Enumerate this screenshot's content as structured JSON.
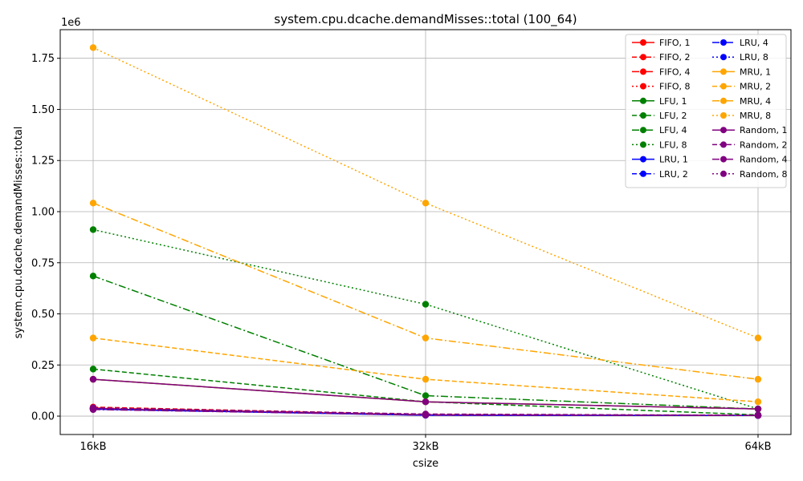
{
  "chart_data": {
    "type": "line",
    "title": "system.cpu.dcache.demandMisses::total (100_64)",
    "xlabel": "csize",
    "ylabel": "system.cpu.dcache.demandMisses::total",
    "y_offset_text": "1e6",
    "categories": [
      "16kB",
      "32kB",
      "64kB"
    ],
    "y_ticks": [
      "0.00",
      "0.25",
      "0.50",
      "0.75",
      "1.00",
      "1.25",
      "1.50",
      "1.75"
    ],
    "y_tick_values": [
      0,
      0.25,
      0.5,
      0.75,
      1.0,
      1.25,
      1.5,
      1.75
    ],
    "ylim": [
      -0.09,
      1.89
    ],
    "grid": true,
    "legend_position": "top-right",
    "series": [
      {
        "name": "FIFO, 1",
        "color": "#ff0000",
        "dash": "solid",
        "values": [
          0.036,
          0.006,
          0.003
        ]
      },
      {
        "name": "FIFO, 2",
        "color": "#ff0000",
        "dash": "dashed",
        "values": [
          0.044,
          0.008,
          0.003
        ]
      },
      {
        "name": "FIFO, 4",
        "color": "#ff0000",
        "dash": "dashdot",
        "values": [
          0.04,
          0.007,
          0.003
        ]
      },
      {
        "name": "FIFO, 8",
        "color": "#ff0000",
        "dash": "dotted",
        "values": [
          0.038,
          0.007,
          0.003
        ]
      },
      {
        "name": "LFU, 1",
        "color": "#008000",
        "dash": "solid",
        "values": [
          0.18,
          0.07,
          0.035
        ]
      },
      {
        "name": "LFU, 2",
        "color": "#008000",
        "dash": "dashed",
        "values": [
          0.23,
          0.07,
          0.006
        ]
      },
      {
        "name": "LFU, 4",
        "color": "#008000",
        "dash": "dashdot",
        "values": [
          0.685,
          0.1,
          0.035
        ]
      },
      {
        "name": "LFU, 8",
        "color": "#008000",
        "dash": "dotted",
        "values": [
          0.912,
          0.547,
          0.035
        ]
      },
      {
        "name": "LRU, 1",
        "color": "#0000ff",
        "dash": "solid",
        "values": [
          0.034,
          0.004,
          0.003
        ]
      },
      {
        "name": "LRU, 2",
        "color": "#0000ff",
        "dash": "dashed",
        "values": [
          0.04,
          0.007,
          0.003
        ]
      },
      {
        "name": "LRU, 4",
        "color": "#0000ff",
        "dash": "dashdot",
        "values": [
          0.036,
          0.005,
          0.003
        ]
      },
      {
        "name": "LRU, 8",
        "color": "#0000ff",
        "dash": "dotted",
        "values": [
          0.035,
          0.005,
          0.003
        ]
      },
      {
        "name": "MRU, 1",
        "color": "#ffa500",
        "dash": "solid",
        "values": [
          0.18,
          0.07,
          0.035
        ]
      },
      {
        "name": "MRU, 2",
        "color": "#ffa500",
        "dash": "dashed",
        "values": [
          0.382,
          0.18,
          0.07
        ]
      },
      {
        "name": "MRU, 4",
        "color": "#ffa500",
        "dash": "dashdot",
        "values": [
          1.042,
          0.382,
          0.18
        ]
      },
      {
        "name": "MRU, 8",
        "color": "#ffa500",
        "dash": "dotted",
        "values": [
          1.802,
          1.042,
          0.382
        ]
      },
      {
        "name": "Random, 1",
        "color": "#800080",
        "dash": "solid",
        "values": [
          0.18,
          0.07,
          0.035
        ]
      },
      {
        "name": "Random, 2",
        "color": "#800080",
        "dash": "dashed",
        "values": [
          0.04,
          0.01,
          0.004
        ]
      },
      {
        "name": "Random, 4",
        "color": "#800080",
        "dash": "dashdot",
        "values": [
          0.032,
          0.005,
          0.003
        ]
      },
      {
        "name": "Random, 8",
        "color": "#800080",
        "dash": "dotted",
        "values": [
          0.036,
          0.006,
          0.003
        ]
      }
    ]
  }
}
